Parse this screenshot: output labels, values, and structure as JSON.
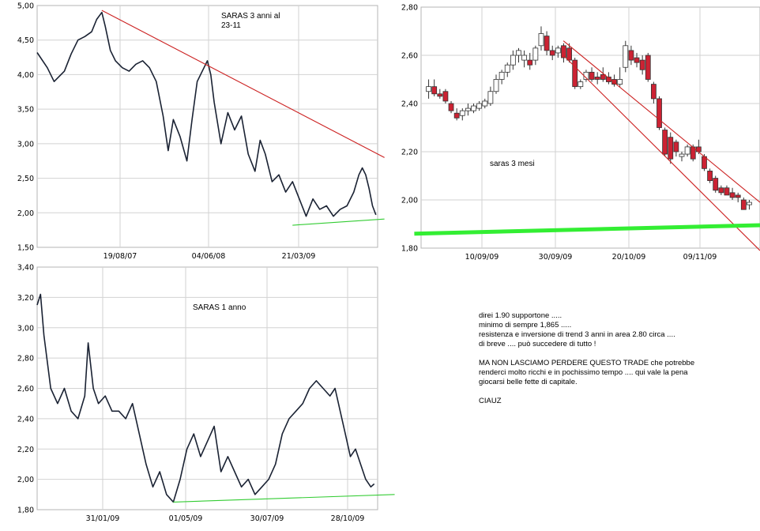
{
  "chart_data": [
    {
      "id": "saras3y",
      "type": "line",
      "annotation": [
        "SARAS 3 anni al",
        "23-11"
      ],
      "y_ticks": [
        "5,00",
        "4,50",
        "4,00",
        "3,50",
        "3,00",
        "2,50",
        "2,00",
        "1,50"
      ],
      "y_values": [
        5.0,
        4.5,
        4.0,
        3.5,
        3.0,
        2.5,
        2.0,
        1.5
      ],
      "ylim": [
        1.5,
        5.0
      ],
      "x_ticks": [
        "19/08/07",
        "04/06/08",
        "21/03/09"
      ],
      "grid": true,
      "series": [
        {
          "color": "#1a2233",
          "points": [
            [
              0,
              4.32
            ],
            [
              0.03,
              4.1
            ],
            [
              0.05,
              3.9
            ],
            [
              0.08,
              4.05
            ],
            [
              0.1,
              4.3
            ],
            [
              0.12,
              4.5
            ],
            [
              0.14,
              4.55
            ],
            [
              0.16,
              4.62
            ],
            [
              0.175,
              4.8
            ],
            [
              0.19,
              4.9
            ],
            [
              0.2,
              4.7
            ],
            [
              0.215,
              4.35
            ],
            [
              0.23,
              4.2
            ],
            [
              0.25,
              4.1
            ],
            [
              0.27,
              4.05
            ],
            [
              0.29,
              4.15
            ],
            [
              0.31,
              4.2
            ],
            [
              0.33,
              4.1
            ],
            [
              0.35,
              3.9
            ],
            [
              0.37,
              3.4
            ],
            [
              0.385,
              2.9
            ],
            [
              0.4,
              3.35
            ],
            [
              0.42,
              3.1
            ],
            [
              0.44,
              2.75
            ],
            [
              0.455,
              3.35
            ],
            [
              0.47,
              3.9
            ],
            [
              0.49,
              4.1
            ],
            [
              0.5,
              4.2
            ],
            [
              0.51,
              4.0
            ],
            [
              0.52,
              3.6
            ],
            [
              0.54,
              3.0
            ],
            [
              0.56,
              3.45
            ],
            [
              0.58,
              3.2
            ],
            [
              0.6,
              3.4
            ],
            [
              0.62,
              2.85
            ],
            [
              0.64,
              2.6
            ],
            [
              0.655,
              3.05
            ],
            [
              0.67,
              2.85
            ],
            [
              0.69,
              2.45
            ],
            [
              0.71,
              2.55
            ],
            [
              0.73,
              2.3
            ],
            [
              0.75,
              2.45
            ],
            [
              0.77,
              2.2
            ],
            [
              0.79,
              1.95
            ],
            [
              0.81,
              2.2
            ],
            [
              0.83,
              2.05
            ],
            [
              0.85,
              2.1
            ],
            [
              0.87,
              1.95
            ],
            [
              0.89,
              2.05
            ],
            [
              0.91,
              2.1
            ],
            [
              0.93,
              2.3
            ],
            [
              0.945,
              2.55
            ],
            [
              0.955,
              2.65
            ],
            [
              0.965,
              2.55
            ],
            [
              0.975,
              2.35
            ],
            [
              0.985,
              2.1
            ],
            [
              0.995,
              1.97
            ]
          ]
        }
      ],
      "trendlines": [
        {
          "color": "#cc2222",
          "from": [
            0.19,
            4.93
          ],
          "to": [
            1.02,
            2.8
          ]
        },
        {
          "color": "#33cc33",
          "from": [
            0.75,
            1.82
          ],
          "to": [
            1.02,
            1.91
          ]
        }
      ]
    },
    {
      "id": "saras3m",
      "type": "candlestick",
      "annotation": [
        "saras 3 mesi"
      ],
      "y_ticks": [
        "2,80",
        "2,60",
        "2,40",
        "2,20",
        "2,00",
        "1,80"
      ],
      "y_values": [
        2.8,
        2.6,
        2.4,
        2.2,
        2.0,
        1.8
      ],
      "ylim": [
        1.8,
        2.8
      ],
      "x_ticks": [
        "10/09/09",
        "30/09/09",
        "20/10/09",
        "09/11/09"
      ],
      "grid": true,
      "up_color": "#ffffff",
      "down_color": "#cc2233",
      "candles": [
        [
          2.45,
          2.5,
          2.42,
          2.47
        ],
        [
          2.47,
          2.5,
          2.43,
          2.44
        ],
        [
          2.44,
          2.46,
          2.42,
          2.43
        ],
        [
          2.45,
          2.46,
          2.4,
          2.41
        ],
        [
          2.4,
          2.41,
          2.36,
          2.37
        ],
        [
          2.36,
          2.38,
          2.33,
          2.34
        ],
        [
          2.35,
          2.38,
          2.33,
          2.37
        ],
        [
          2.37,
          2.4,
          2.35,
          2.38
        ],
        [
          2.37,
          2.4,
          2.36,
          2.39
        ],
        [
          2.38,
          2.41,
          2.37,
          2.4
        ],
        [
          2.39,
          2.42,
          2.38,
          2.41
        ],
        [
          2.4,
          2.47,
          2.39,
          2.45
        ],
        [
          2.45,
          2.52,
          2.44,
          2.5
        ],
        [
          2.5,
          2.54,
          2.48,
          2.53
        ],
        [
          2.53,
          2.57,
          2.51,
          2.56
        ],
        [
          2.56,
          2.62,
          2.54,
          2.6
        ],
        [
          2.6,
          2.63,
          2.57,
          2.62
        ],
        [
          2.58,
          2.62,
          2.55,
          2.6
        ],
        [
          2.58,
          2.61,
          2.54,
          2.56
        ],
        [
          2.58,
          2.64,
          2.56,
          2.63
        ],
        [
          2.64,
          2.72,
          2.62,
          2.69
        ],
        [
          2.68,
          2.7,
          2.6,
          2.62
        ],
        [
          2.62,
          2.64,
          2.58,
          2.6
        ],
        [
          2.61,
          2.64,
          2.59,
          2.63
        ],
        [
          2.64,
          2.65,
          2.57,
          2.59
        ],
        [
          2.63,
          2.65,
          2.57,
          2.58
        ],
        [
          2.58,
          2.59,
          2.46,
          2.47
        ],
        [
          2.47,
          2.5,
          2.46,
          2.49
        ],
        [
          2.5,
          2.54,
          2.49,
          2.53
        ],
        [
          2.53,
          2.55,
          2.49,
          2.5
        ],
        [
          2.51,
          2.53,
          2.48,
          2.5
        ],
        [
          2.52,
          2.55,
          2.49,
          2.5
        ],
        [
          2.51,
          2.53,
          2.48,
          2.49
        ],
        [
          2.5,
          2.52,
          2.47,
          2.48
        ],
        [
          2.48,
          2.55,
          2.47,
          2.5
        ],
        [
          2.55,
          2.66,
          2.53,
          2.64
        ],
        [
          2.62,
          2.64,
          2.56,
          2.58
        ],
        [
          2.59,
          2.61,
          2.55,
          2.57
        ],
        [
          2.58,
          2.6,
          2.52,
          2.54
        ],
        [
          2.6,
          2.61,
          2.49,
          2.5
        ],
        [
          2.48,
          2.49,
          2.4,
          2.42
        ],
        [
          2.42,
          2.43,
          2.29,
          2.3
        ],
        [
          2.29,
          2.3,
          2.18,
          2.19
        ],
        [
          2.26,
          2.28,
          2.15,
          2.17
        ],
        [
          2.24,
          2.25,
          2.18,
          2.2
        ],
        [
          2.18,
          2.2,
          2.16,
          2.19
        ],
        [
          2.19,
          2.23,
          2.18,
          2.22
        ],
        [
          2.22,
          2.23,
          2.16,
          2.17
        ],
        [
          2.22,
          2.25,
          2.19,
          2.2
        ],
        [
          2.18,
          2.19,
          2.12,
          2.13
        ],
        [
          2.12,
          2.13,
          2.07,
          2.08
        ],
        [
          2.09,
          2.1,
          2.03,
          2.04
        ],
        [
          2.05,
          2.06,
          2.02,
          2.03
        ],
        [
          2.05,
          2.06,
          2.02,
          2.02
        ],
        [
          2.03,
          2.05,
          2.0,
          2.01
        ],
        [
          2.02,
          2.03,
          1.99,
          2.01
        ],
        [
          2.0,
          2.01,
          1.96,
          1.96
        ],
        [
          1.98,
          2.0,
          1.96,
          1.99
        ]
      ],
      "trendlines": [
        {
          "color": "#cc2222",
          "from": [
            0.42,
            2.66
          ],
          "to": [
            1.0,
            1.99
          ]
        },
        {
          "color": "#cc2222",
          "from": [
            0.42,
            2.6
          ],
          "to": [
            1.0,
            1.79
          ]
        },
        {
          "color": "#33ee33",
          "from": [
            -0.02,
            1.86
          ],
          "to": [
            1.0,
            1.895
          ],
          "width": 5
        }
      ]
    },
    {
      "id": "saras1y",
      "type": "line",
      "annotation": [
        "SARAS 1 anno"
      ],
      "y_ticks": [
        "3,40",
        "3,20",
        "3,00",
        "2,80",
        "2,60",
        "2,40",
        "2,20",
        "2,00",
        "1,80"
      ],
      "y_values": [
        3.4,
        3.2,
        3.0,
        2.8,
        2.6,
        2.4,
        2.2,
        2.0,
        1.8
      ],
      "ylim": [
        1.8,
        3.4
      ],
      "x_ticks": [
        "31/01/09",
        "01/05/09",
        "30/07/09",
        "28/10/09"
      ],
      "grid": true,
      "series": [
        {
          "color": "#1a2233",
          "points": [
            [
              0,
              3.15
            ],
            [
              0.01,
              3.22
            ],
            [
              0.02,
              2.95
            ],
            [
              0.04,
              2.6
            ],
            [
              0.06,
              2.5
            ],
            [
              0.08,
              2.6
            ],
            [
              0.1,
              2.45
            ],
            [
              0.12,
              2.4
            ],
            [
              0.14,
              2.55
            ],
            [
              0.15,
              2.9
            ],
            [
              0.165,
              2.6
            ],
            [
              0.18,
              2.5
            ],
            [
              0.2,
              2.55
            ],
            [
              0.22,
              2.45
            ],
            [
              0.24,
              2.45
            ],
            [
              0.26,
              2.4
            ],
            [
              0.28,
              2.5
            ],
            [
              0.3,
              2.3
            ],
            [
              0.32,
              2.1
            ],
            [
              0.34,
              1.95
            ],
            [
              0.36,
              2.05
            ],
            [
              0.38,
              1.9
            ],
            [
              0.4,
              1.85
            ],
            [
              0.42,
              2.0
            ],
            [
              0.44,
              2.2
            ],
            [
              0.46,
              2.3
            ],
            [
              0.48,
              2.15
            ],
            [
              0.5,
              2.25
            ],
            [
              0.52,
              2.35
            ],
            [
              0.54,
              2.05
            ],
            [
              0.56,
              2.15
            ],
            [
              0.58,
              2.05
            ],
            [
              0.6,
              1.95
            ],
            [
              0.62,
              2.0
            ],
            [
              0.64,
              1.9
            ],
            [
              0.66,
              1.95
            ],
            [
              0.68,
              2.0
            ],
            [
              0.7,
              2.1
            ],
            [
              0.72,
              2.3
            ],
            [
              0.74,
              2.4
            ],
            [
              0.76,
              2.45
            ],
            [
              0.78,
              2.5
            ],
            [
              0.8,
              2.6
            ],
            [
              0.82,
              2.65
            ],
            [
              0.84,
              2.6
            ],
            [
              0.86,
              2.55
            ],
            [
              0.875,
              2.6
            ],
            [
              0.89,
              2.45
            ],
            [
              0.905,
              2.3
            ],
            [
              0.92,
              2.15
            ],
            [
              0.935,
              2.2
            ],
            [
              0.95,
              2.1
            ],
            [
              0.965,
              2.0
            ],
            [
              0.98,
              1.95
            ],
            [
              0.99,
              1.97
            ]
          ]
        }
      ],
      "trendlines": [
        {
          "color": "#33cc33",
          "from": [
            0.4,
            1.85
          ],
          "to": [
            1.05,
            1.9
          ]
        }
      ]
    }
  ],
  "commentary": [
    "direi 1.90 supportone .....",
    "minimo di sempre 1,865 .....",
    "resistenza e inversione di trend 3 anni in area 2.80 circa ....",
    "di breve .... può succedere di tutto !",
    "",
    "MA NON LASCIAMO PERDERE QUESTO TRADE che potrebbe",
    "renderci molto ricchi e in pochissimo tempo .... qui vale la pena",
    "giocarsi belle fette di capitale.",
    "",
    "CIAUZ"
  ]
}
